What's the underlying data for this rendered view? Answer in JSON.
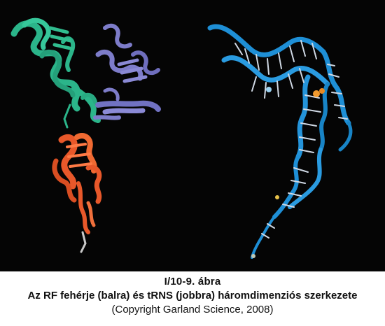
{
  "figure": {
    "number": "I/10-9. ábra",
    "title": "Az RF fehérje (balra) és tRNS (jobbra) háromdimenziós szerkezete",
    "credit": "(Copyright Garland Science, 2008)"
  },
  "image": {
    "background_color": "#050505",
    "colors": {
      "rf_green": "#2bb58a",
      "rf_purple": "#7d7cc9",
      "rf_orange": "#e8582a",
      "trna_blue": "#1e8fd6",
      "trna_bases": "#cfd8e4",
      "ligand_orange": "#f29a2e"
    }
  }
}
